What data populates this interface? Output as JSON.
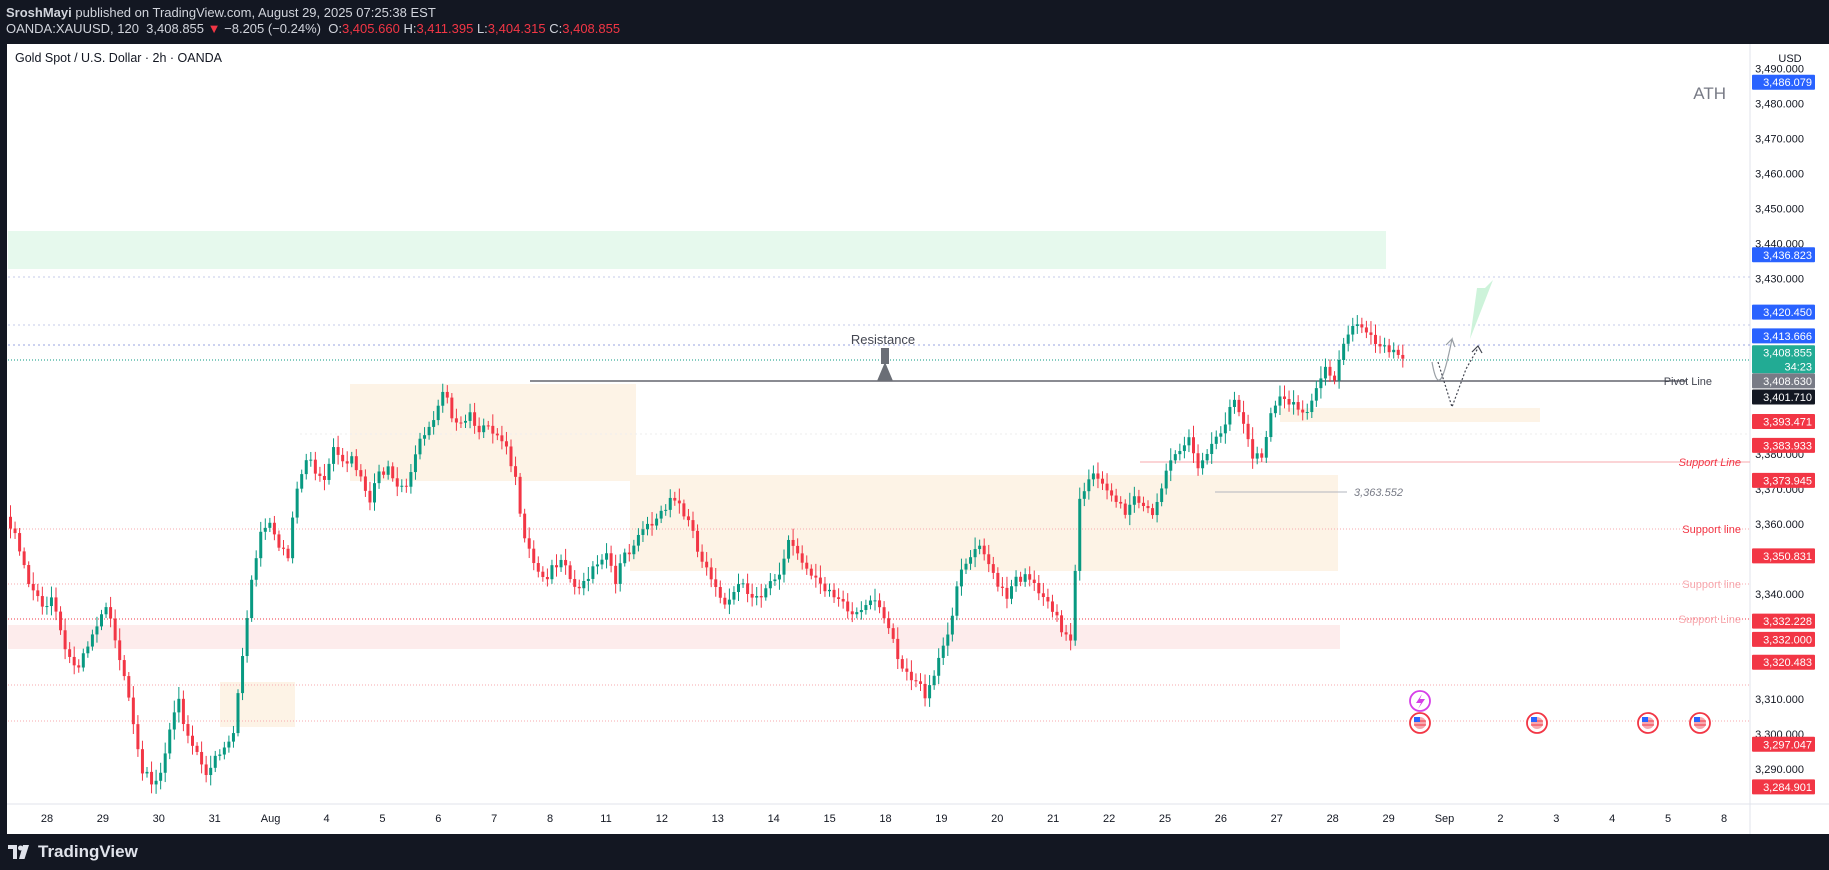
{
  "header": {
    "publisher": "SroshMayi",
    "published_text": "published on TradingView.com, August 29, 2025 07:25:38 EST",
    "symbol": "OANDA:XAUUSD, 120",
    "last": "3,408.855",
    "change_arrow": "▼",
    "change": "−8.205 (−0.24%)",
    "o_label": "O:",
    "o": "3,405.660",
    "h_label": "H:",
    "h": "3,411.395",
    "l_label": "L:",
    "l": "3,404.315",
    "c_label": "C:",
    "c": "3,408.855"
  },
  "chart_title": "Gold Spot / U.S. Dollar · 2h · OANDA",
  "currency": "USD",
  "footer": {
    "logo_text": "TradingView",
    "logo_icon": "tradingview-logo-icon"
  },
  "colors": {
    "up": "#089981",
    "down": "#f23645",
    "blue_tag": "#2962ff",
    "red_tag": "#f23645",
    "demand_zone": "#e6f9ed",
    "sell_zone": "#fdecec",
    "range_box": "#fdf3e6"
  },
  "chart_data": {
    "type": "candlestick",
    "symbol": "XAUUSD",
    "interval": "2h",
    "ylim": [
      3280,
      3497
    ],
    "y_ticks": [
      3290,
      3300,
      3310,
      3340,
      3360,
      3370,
      3380,
      3430,
      3440,
      3450,
      3460,
      3470,
      3480,
      3490
    ],
    "y_tick_labels": [
      "3,290.000",
      "3,300.000",
      "3,310.000",
      "3,340.000",
      "3,360.000",
      "3,370.000",
      "3,380.000",
      "3,430.000",
      "3,440.000",
      "3,450.000",
      "3,460.000",
      "3,470.000",
      "3,480.000",
      "3,490.000"
    ],
    "x_labels": [
      "28",
      "29",
      "30",
      "31",
      "Aug",
      "4",
      "5",
      "6",
      "7",
      "8",
      "11",
      "12",
      "13",
      "14",
      "15",
      "18",
      "19",
      "20",
      "21",
      "22",
      "25",
      "26",
      "27",
      "28",
      "29",
      "Sep",
      "2",
      "3",
      "4",
      "5",
      "8"
    ],
    "price_path": [
      [
        0,
        3362
      ],
      [
        3,
        3352
      ],
      [
        5,
        3342
      ],
      [
        8,
        3336
      ],
      [
        10,
        3340
      ],
      [
        12,
        3330
      ],
      [
        14,
        3322
      ],
      [
        16,
        3318
      ],
      [
        18,
        3324
      ],
      [
        20,
        3330
      ],
      [
        22,
        3335
      ],
      [
        24,
        3328
      ],
      [
        26,
        3318
      ],
      [
        28,
        3305
      ],
      [
        30,
        3290
      ],
      [
        32,
        3284
      ],
      [
        34,
        3288
      ],
      [
        36,
        3300
      ],
      [
        38,
        3308
      ],
      [
        40,
        3300
      ],
      [
        42,
        3295
      ],
      [
        44,
        3290
      ],
      [
        46,
        3292
      ],
      [
        48,
        3295
      ],
      [
        50,
        3300
      ],
      [
        52,
        3322
      ],
      [
        54,
        3345
      ],
      [
        56,
        3358
      ],
      [
        58,
        3362
      ],
      [
        60,
        3355
      ],
      [
        62,
        3350
      ],
      [
        64,
        3370
      ],
      [
        66,
        3378
      ],
      [
        68,
        3376
      ],
      [
        70,
        3374
      ],
      [
        72,
        3383
      ],
      [
        74,
        3380
      ],
      [
        76,
        3378
      ],
      [
        78,
        3372
      ],
      [
        80,
        3366
      ],
      [
        82,
        3374
      ],
      [
        84,
        3378
      ],
      [
        86,
        3372
      ],
      [
        88,
        3372
      ],
      [
        90,
        3380
      ],
      [
        92,
        3385
      ],
      [
        94,
        3388
      ],
      [
        96,
        3396
      ],
      [
        98,
        3392
      ],
      [
        100,
        3390
      ],
      [
        102,
        3392
      ],
      [
        104,
        3388
      ],
      [
        106,
        3386
      ],
      [
        108,
        3384
      ],
      [
        110,
        3380
      ],
      [
        112,
        3372
      ],
      [
        114,
        3358
      ],
      [
        116,
        3350
      ],
      [
        118,
        3345
      ],
      [
        120,
        3346
      ],
      [
        122,
        3348
      ],
      [
        124,
        3344
      ],
      [
        126,
        3340
      ],
      [
        128,
        3346
      ],
      [
        130,
        3350
      ],
      [
        132,
        3352
      ],
      [
        134,
        3345
      ],
      [
        136,
        3350
      ],
      [
        138,
        3352
      ],
      [
        140,
        3358
      ],
      [
        142,
        3360
      ],
      [
        144,
        3364
      ],
      [
        146,
        3368
      ],
      [
        148,
        3366
      ],
      [
        150,
        3360
      ],
      [
        152,
        3352
      ],
      [
        154,
        3346
      ],
      [
        156,
        3340
      ],
      [
        158,
        3338
      ],
      [
        160,
        3342
      ],
      [
        162,
        3344
      ],
      [
        164,
        3340
      ],
      [
        166,
        3338
      ],
      [
        168,
        3342
      ],
      [
        170,
        3344
      ],
      [
        172,
        3356
      ],
      [
        174,
        3352
      ],
      [
        176,
        3348
      ],
      [
        178,
        3346
      ],
      [
        180,
        3340
      ],
      [
        182,
        3338
      ],
      [
        184,
        3336
      ],
      [
        186,
        3334
      ],
      [
        188,
        3336
      ],
      [
        190,
        3340
      ],
      [
        192,
        3338
      ],
      [
        194,
        3330
      ],
      [
        196,
        3320
      ],
      [
        198,
        3316
      ],
      [
        200,
        3314
      ],
      [
        202,
        3312
      ],
      [
        204,
        3318
      ],
      [
        206,
        3326
      ],
      [
        208,
        3334
      ],
      [
        210,
        3346
      ],
      [
        212,
        3350
      ],
      [
        214,
        3352
      ],
      [
        216,
        3348
      ],
      [
        218,
        3344
      ],
      [
        220,
        3340
      ],
      [
        222,
        3346
      ],
      [
        224,
        3344
      ],
      [
        226,
        3342
      ],
      [
        228,
        3338
      ],
      [
        230,
        3334
      ],
      [
        232,
        3330
      ],
      [
        234,
        3328
      ],
      [
        236,
        3368
      ],
      [
        238,
        3374
      ],
      [
        240,
        3372
      ],
      [
        242,
        3368
      ],
      [
        244,
        3366
      ],
      [
        246,
        3364
      ],
      [
        248,
        3368
      ],
      [
        250,
        3366
      ],
      [
        252,
        3364
      ],
      [
        254,
        3370
      ],
      [
        256,
        3376
      ],
      [
        258,
        3380
      ],
      [
        260,
        3384
      ],
      [
        262,
        3378
      ],
      [
        264,
        3380
      ],
      [
        266,
        3386
      ],
      [
        268,
        3390
      ],
      [
        270,
        3394
      ],
      [
        272,
        3388
      ],
      [
        274,
        3378
      ],
      [
        276,
        3380
      ],
      [
        278,
        3392
      ],
      [
        280,
        3398
      ],
      [
        282,
        3396
      ],
      [
        284,
        3392
      ],
      [
        286,
        3390
      ],
      [
        288,
        3398
      ],
      [
        290,
        3404
      ],
      [
        292,
        3402
      ],
      [
        294,
        3412
      ],
      [
        296,
        3418
      ],
      [
        298,
        3416
      ],
      [
        300,
        3412
      ],
      [
        302,
        3410
      ],
      [
        304,
        3408
      ],
      [
        306,
        3408.855
      ]
    ],
    "last_price": 3408.855,
    "countdown": "34:23",
    "price_tags": [
      {
        "label": "3,486.079",
        "value": 3486.079,
        "color": "blue"
      },
      {
        "label": "3,436.823",
        "value": 3436.823,
        "color": "blue"
      },
      {
        "label": "3,420.450",
        "value": 3420.45,
        "color": "blue"
      },
      {
        "label": "3,413.666",
        "value": 3413.666,
        "color": "blue"
      },
      {
        "label": "3,408.855",
        "value": 3408.855,
        "color": "teal"
      },
      {
        "label": "3,408.630",
        "value": 3400.8,
        "color": "gray"
      },
      {
        "label": "3,401.710",
        "value": 3396.2,
        "color": "black"
      },
      {
        "label": "3,393.471",
        "value": 3389.2,
        "color": "red"
      },
      {
        "label": "3,383.933",
        "value": 3382.4,
        "color": "red"
      },
      {
        "label": "3,373.945",
        "value": 3372.4,
        "color": "red"
      },
      {
        "label": "3,350.831",
        "value": 3350.831,
        "color": "red"
      },
      {
        "label": "3,332.228",
        "value": 3332.228,
        "color": "red"
      },
      {
        "label": "3,332.000",
        "value": 3327.0,
        "color": "red"
      },
      {
        "label": "3,320.483",
        "value": 3320.483,
        "color": "red"
      },
      {
        "label": "3,297.047",
        "value": 3297.047,
        "color": "red"
      },
      {
        "label": "3,284.901",
        "value": 3284.901,
        "color": "red"
      }
    ],
    "annotations": {
      "ath": "ATH",
      "resistance": "Resistance",
      "pivot_line": "Pivot Line",
      "support_1": "Support Line",
      "support_2": "Support line",
      "support_3": "Support line",
      "support_4": "Support Line",
      "level_label": "3,363.552"
    }
  }
}
